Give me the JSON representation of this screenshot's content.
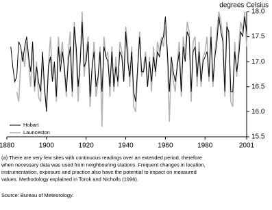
{
  "chart_data": {
    "type": "line",
    "y_label": "degrees Celsius",
    "x": [
      1882,
      1883,
      1884,
      1885,
      1886,
      1887,
      1888,
      1889,
      1890,
      1891,
      1892,
      1893,
      1894,
      1895,
      1896,
      1897,
      1898,
      1899,
      1900,
      1901,
      1902,
      1903,
      1904,
      1905,
      1906,
      1907,
      1908,
      1909,
      1910,
      1911,
      1912,
      1913,
      1914,
      1915,
      1916,
      1917,
      1918,
      1919,
      1920,
      1921,
      1922,
      1923,
      1924,
      1925,
      1926,
      1927,
      1928,
      1929,
      1930,
      1931,
      1932,
      1933,
      1934,
      1935,
      1936,
      1937,
      1938,
      1939,
      1940,
      1941,
      1942,
      1943,
      1944,
      1945,
      1946,
      1947,
      1948,
      1949,
      1950,
      1951,
      1952,
      1953,
      1954,
      1955,
      1956,
      1957,
      1958,
      1959,
      1960,
      1961,
      1962,
      1963,
      1964,
      1965,
      1966,
      1967,
      1968,
      1969,
      1970,
      1971,
      1972,
      1973,
      1974,
      1975,
      1976,
      1977,
      1978,
      1979,
      1980,
      1981,
      1982,
      1983,
      1984,
      1985,
      1986,
      1987,
      1988,
      1989,
      1990,
      1991,
      1992,
      1993,
      1994,
      1995,
      1996,
      1997,
      1998,
      1999,
      2000,
      2001
    ],
    "series": [
      {
        "name": "Hobart",
        "color": "#000000",
        "values": [
          17.3,
          16.9,
          16.6,
          16.7,
          17.4,
          17.3,
          17.0,
          17.3,
          17.5,
          17.1,
          16.8,
          17.4,
          16.5,
          16.9,
          16.6,
          16.4,
          17.2,
          16.5,
          16.0,
          16.9,
          17.1,
          16.6,
          17.0,
          16.3,
          17.3,
          16.8,
          17.2,
          16.9,
          16.4,
          17.0,
          17.3,
          16.4,
          17.7,
          17.3,
          16.5,
          17.0,
          17.8,
          16.9,
          17.0,
          17.4,
          16.3,
          16.9,
          17.2,
          16.5,
          16.7,
          17.2,
          16.4,
          17.3,
          17.1,
          17.0,
          16.5,
          17.2,
          16.5,
          16.9,
          16.6,
          17.2,
          17.1,
          16.6,
          17.6,
          17.0,
          16.7,
          17.2,
          16.4,
          16.2,
          16.9,
          17.5,
          16.8,
          16.8,
          17.1,
          16.5,
          17.0,
          16.6,
          17.1,
          16.8,
          17.2,
          17.1,
          17.4,
          17.5,
          17.9,
          17.2,
          16.4,
          17.1,
          16.8,
          16.6,
          16.9,
          17.2,
          16.4,
          17.3,
          17.0,
          17.6,
          17.5,
          16.4,
          17.2,
          17.3,
          16.7,
          17.2,
          16.6,
          17.0,
          17.1,
          17.2,
          16.7,
          17.5,
          16.6,
          17.1,
          17.4,
          17.9,
          17.6,
          17.4,
          16.4,
          17.7,
          17.6,
          16.4,
          16.4,
          17.2,
          16.8,
          17.1,
          17.6,
          17.5,
          17.9,
          17.6
        ]
      },
      {
        "name": "Launceston",
        "color": "#b3b3b3",
        "values": [
          null,
          null,
          null,
          16.4,
          16.2,
          17.0,
          17.2,
          16.9,
          17.4,
          17.0,
          16.5,
          17.3,
          16.4,
          17.0,
          16.3,
          16.2,
          17.1,
          16.4,
          16.1,
          16.9,
          17.5,
          16.7,
          16.9,
          16.2,
          17.5,
          17.0,
          17.4,
          16.8,
          16.3,
          17.2,
          17.6,
          16.3,
          17.8,
          17.1,
          16.2,
          17.0,
          18.0,
          16.7,
          17.2,
          17.5,
          16.1,
          16.8,
          17.4,
          16.3,
          16.6,
          17.3,
          15.7,
          17.5,
          17.1,
          17.2,
          16.3,
          17.3,
          16.4,
          17.1,
          16.5,
          17.4,
          17.2,
          16.6,
          17.7,
          17.3,
          16.5,
          17.3,
          16.1,
          16.0,
          16.8,
          17.6,
          16.7,
          16.9,
          17.2,
          16.5,
          17.1,
          16.4,
          17.3,
          16.7,
          17.4,
          17.2,
          17.5,
          17.3,
          17.7,
          17.1,
          15.8,
          17.0,
          16.6,
          16.4,
          17.0,
          17.4,
          16.3,
          17.5,
          17.1,
          17.8,
          17.6,
          16.2,
          17.4,
          17.5,
          16.5,
          17.4,
          16.5,
          17.1,
          17.2,
          17.5,
          16.6,
          17.7,
          16.5,
          17.2,
          17.6,
          18.0,
          17.8,
          17.5,
          16.3,
          17.8,
          17.5,
          16.2,
          16.1,
          17.4,
          16.7,
          17.3,
          17.8,
          17.6,
          18.0,
          17.3
        ]
      }
    ],
    "xlim": [
      1880,
      2001
    ],
    "xticks": [
      1880,
      1900,
      1920,
      1940,
      1960,
      1980,
      2001
    ],
    "ylim": [
      15.5,
      18.0
    ],
    "yticks": [
      15.5,
      {
        "value": 16.0,
        "label": "16.0"
      },
      16.5,
      {
        "value": 17.0,
        "label": "17.0"
      },
      17.5,
      {
        "value": 18.0,
        "label": "18.0"
      }
    ],
    "legend": "lower-left",
    "footnote": [
      "(a) There are very few sites with continuous readings over an extended period, therefore",
      "when necessary data was used from neighbouring stations. Frequent changes in location,",
      "instrumentation, exposure and practice also have the potential to impact on  measured",
      "values. Methodology explained in Torok and Nicholls (1996)."
    ],
    "source": "Source: Bureau of Meteorology."
  }
}
